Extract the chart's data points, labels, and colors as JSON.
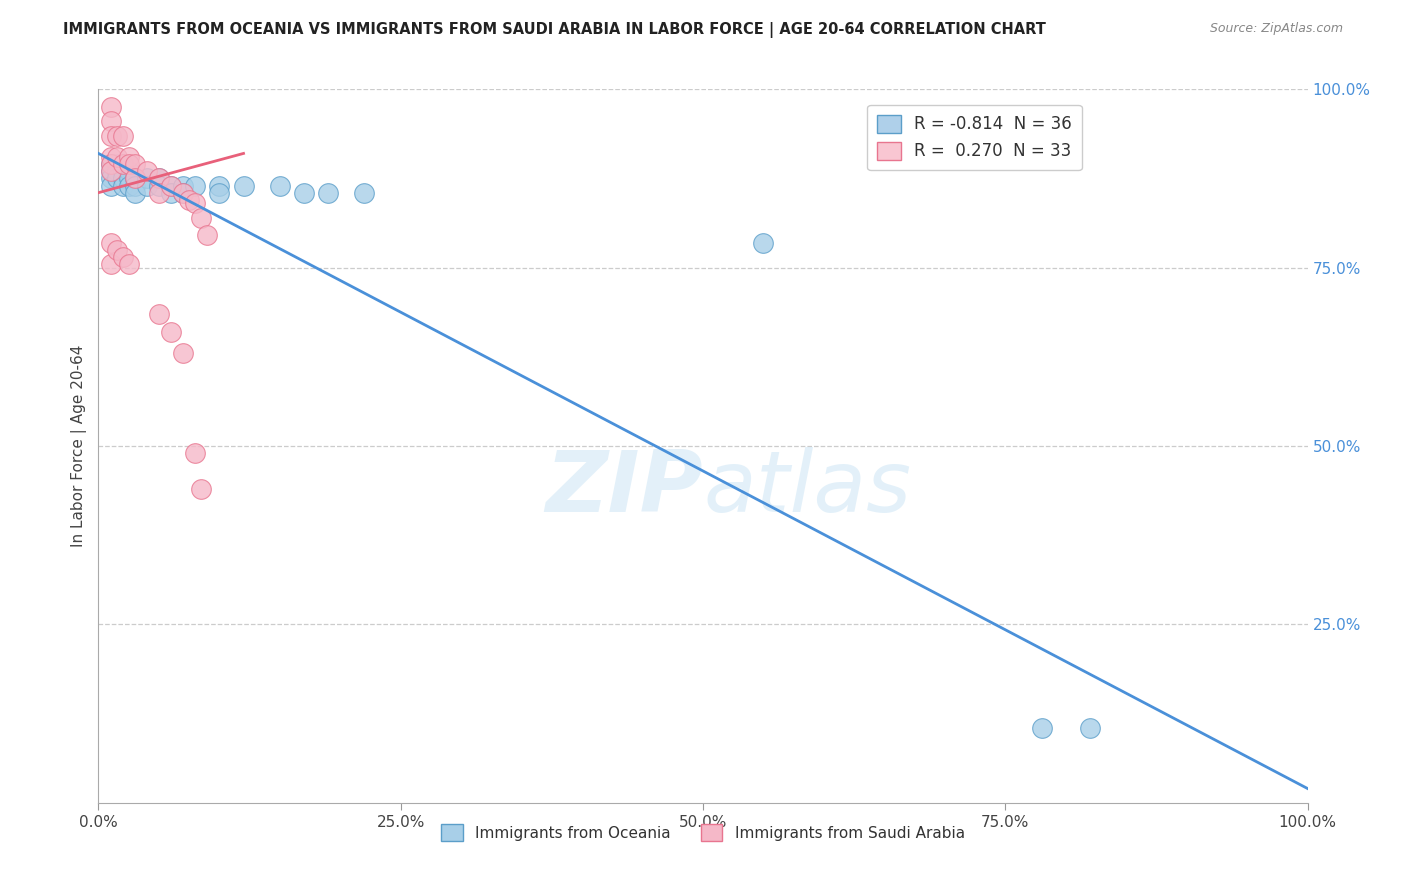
{
  "title": "IMMIGRANTS FROM OCEANIA VS IMMIGRANTS FROM SAUDI ARABIA IN LABOR FORCE | AGE 20-64 CORRELATION CHART",
  "source": "Source: ZipAtlas.com",
  "ylabel": "In Labor Force | Age 20-64",
  "xmin": 0.0,
  "xmax": 1.0,
  "ymin": 0.0,
  "ymax": 1.0,
  "x_tick_labels": [
    "0.0%",
    "25.0%",
    "50.0%",
    "75.0%",
    "100.0%"
  ],
  "x_tick_values": [
    0.0,
    0.25,
    0.5,
    0.75,
    1.0
  ],
  "y_tick_labels_right": [
    "100.0%",
    "75.0%",
    "50.0%",
    "25.0%"
  ],
  "y_tick_values_right": [
    1.0,
    0.75,
    0.5,
    0.25
  ],
  "legend_entry1_label": "R = -0.814  N = 36",
  "legend_entry2_label": "R =  0.270  N = 33",
  "legend_color1": "#afd0ea",
  "legend_color2": "#f9c6d2",
  "watermark": "ZIPatlas",
  "oceania_color": "#a8cfe8",
  "saudi_color": "#f5b8c8",
  "oceania_edge_color": "#5b9ec9",
  "saudi_edge_color": "#e8758f",
  "oceania_line_color": "#4a90d9",
  "saudi_line_color": "#e8607a",
  "blue_scatter": [
    [
      0.01,
      0.895
    ],
    [
      0.01,
      0.885
    ],
    [
      0.01,
      0.875
    ],
    [
      0.01,
      0.865
    ],
    [
      0.015,
      0.895
    ],
    [
      0.015,
      0.885
    ],
    [
      0.015,
      0.875
    ],
    [
      0.02,
      0.895
    ],
    [
      0.02,
      0.885
    ],
    [
      0.02,
      0.875
    ],
    [
      0.02,
      0.865
    ],
    [
      0.025,
      0.885
    ],
    [
      0.025,
      0.875
    ],
    [
      0.025,
      0.865
    ],
    [
      0.03,
      0.875
    ],
    [
      0.03,
      0.865
    ],
    [
      0.03,
      0.855
    ],
    [
      0.04,
      0.875
    ],
    [
      0.04,
      0.865
    ],
    [
      0.05,
      0.875
    ],
    [
      0.05,
      0.865
    ],
    [
      0.06,
      0.865
    ],
    [
      0.06,
      0.855
    ],
    [
      0.07,
      0.865
    ],
    [
      0.07,
      0.855
    ],
    [
      0.08,
      0.865
    ],
    [
      0.1,
      0.865
    ],
    [
      0.1,
      0.855
    ],
    [
      0.12,
      0.865
    ],
    [
      0.15,
      0.865
    ],
    [
      0.17,
      0.855
    ],
    [
      0.19,
      0.855
    ],
    [
      0.22,
      0.855
    ],
    [
      0.55,
      0.785
    ],
    [
      0.78,
      0.105
    ],
    [
      0.82,
      0.105
    ]
  ],
  "pink_scatter": [
    [
      0.01,
      0.975
    ],
    [
      0.01,
      0.955
    ],
    [
      0.01,
      0.935
    ],
    [
      0.01,
      0.905
    ],
    [
      0.01,
      0.895
    ],
    [
      0.01,
      0.885
    ],
    [
      0.015,
      0.935
    ],
    [
      0.015,
      0.905
    ],
    [
      0.02,
      0.935
    ],
    [
      0.02,
      0.895
    ],
    [
      0.025,
      0.905
    ],
    [
      0.025,
      0.895
    ],
    [
      0.03,
      0.895
    ],
    [
      0.03,
      0.875
    ],
    [
      0.04,
      0.885
    ],
    [
      0.05,
      0.875
    ],
    [
      0.05,
      0.855
    ],
    [
      0.06,
      0.865
    ],
    [
      0.07,
      0.855
    ],
    [
      0.075,
      0.845
    ],
    [
      0.08,
      0.84
    ],
    [
      0.085,
      0.82
    ],
    [
      0.09,
      0.795
    ],
    [
      0.01,
      0.785
    ],
    [
      0.01,
      0.755
    ],
    [
      0.015,
      0.775
    ],
    [
      0.02,
      0.765
    ],
    [
      0.025,
      0.755
    ],
    [
      0.05,
      0.685
    ],
    [
      0.06,
      0.66
    ],
    [
      0.07,
      0.63
    ],
    [
      0.08,
      0.49
    ],
    [
      0.085,
      0.44
    ]
  ],
  "blue_trendline": [
    [
      0.0,
      0.91
    ],
    [
      1.0,
      0.02
    ]
  ],
  "pink_trendline": [
    [
      0.0,
      0.855
    ],
    [
      0.12,
      0.91
    ]
  ]
}
